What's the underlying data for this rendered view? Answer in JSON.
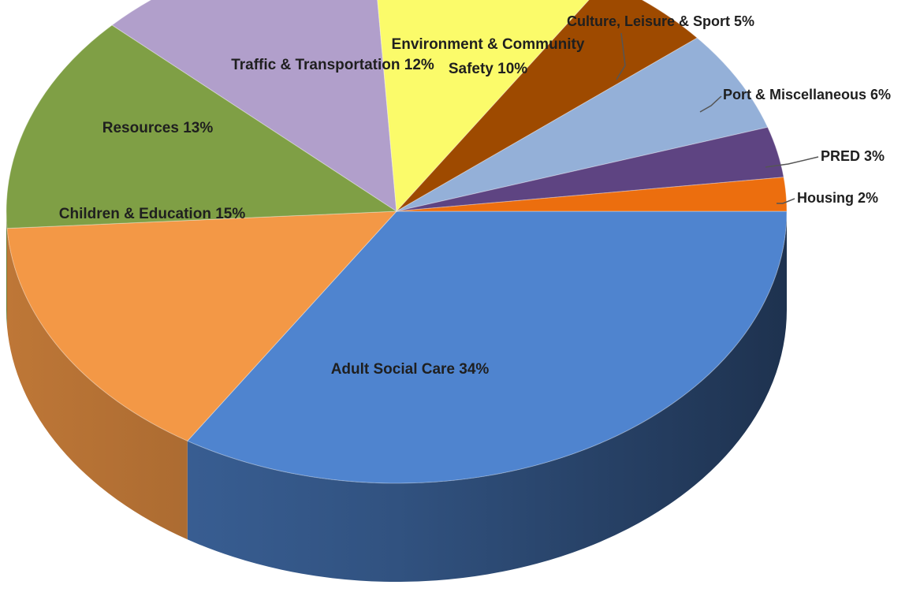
{
  "chart_data": {
    "type": "pie",
    "title": "",
    "slices": [
      {
        "name": "Adult Social Care",
        "value": 34,
        "label": "Adult Social Care 34%",
        "color": "#4f84cf"
      },
      {
        "name": "Children & Education",
        "value": 15,
        "label": "Children & Education 15%",
        "color": "#f39846"
      },
      {
        "name": "Resources",
        "value": 13,
        "label": "Resources 13%",
        "color": "#7f9f45"
      },
      {
        "name": "Traffic & Transportation",
        "value": 12,
        "label": "Traffic & Transportation 12%",
        "color": "#b19fcb"
      },
      {
        "name": "Environment & Community Safety",
        "value": 10,
        "label_line1": "Environment & Community",
        "label_line2": "Safety 10%",
        "color": "#fbfb6a"
      },
      {
        "name": "Culture, Leisure & Sport",
        "value": 5,
        "label": "Culture, Leisure & Sport 5%",
        "color": "#9e4a00"
      },
      {
        "name": "Port & Miscellaneous",
        "value": 6,
        "label": "Port & Miscellaneous 6%",
        "color": "#94b0d8"
      },
      {
        "name": "PRED",
        "value": 3,
        "label": "PRED 3%",
        "color": "#5e4482"
      },
      {
        "name": "Housing",
        "value": 2,
        "label": "Housing 2%",
        "color": "#ec6e0e"
      }
    ]
  }
}
